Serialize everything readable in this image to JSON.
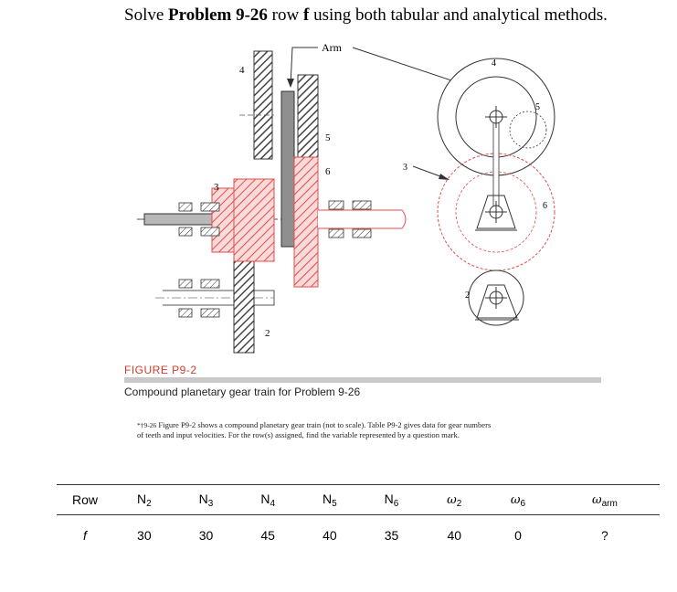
{
  "title": {
    "prefix": "Solve ",
    "bold": "Problem 9-26",
    "middle": " row ",
    "row_bold": "f",
    "suffix": " using both tabular and analytical methods."
  },
  "figure": {
    "labels": {
      "arm": "Arm",
      "gear2": "2",
      "gear3": "3",
      "gear4": "4",
      "gear5": "5",
      "gear6": "6",
      "side3": "3",
      "side4": "4",
      "side5": "5",
      "side6": "6",
      "side2": "2"
    },
    "colors": {
      "hatch_red": "#e34b4b",
      "hatch_gray": "#444444",
      "arm_gray": "#8f8f8f",
      "pitch_red": "#e34b4b"
    },
    "figure_label": "FIGURE P9-2",
    "caption": "Compound planetary gear train for Problem 9-26"
  },
  "problem": {
    "number": "*†9-26",
    "text": "Figure P9-2 shows a compound planetary gear train (not to scale). Table P9-2 gives data for gear numbers of teeth and input velocities. For the row(s) assigned, find the variable represented by a question mark."
  },
  "table": {
    "headers": [
      {
        "sym": "Row",
        "sub": ""
      },
      {
        "sym": "N",
        "sub": "2"
      },
      {
        "sym": "N",
        "sub": "3"
      },
      {
        "sym": "N",
        "sub": "4"
      },
      {
        "sym": "N",
        "sub": "5"
      },
      {
        "sym": "N",
        "sub": "6"
      },
      {
        "sym": "ω",
        "sub": "2"
      },
      {
        "sym": "ω",
        "sub": "6"
      },
      {
        "sym": "ω",
        "sub": "arm"
      }
    ],
    "row": [
      "f",
      "30",
      "30",
      "45",
      "40",
      "35",
      "40",
      "0",
      "?"
    ]
  }
}
